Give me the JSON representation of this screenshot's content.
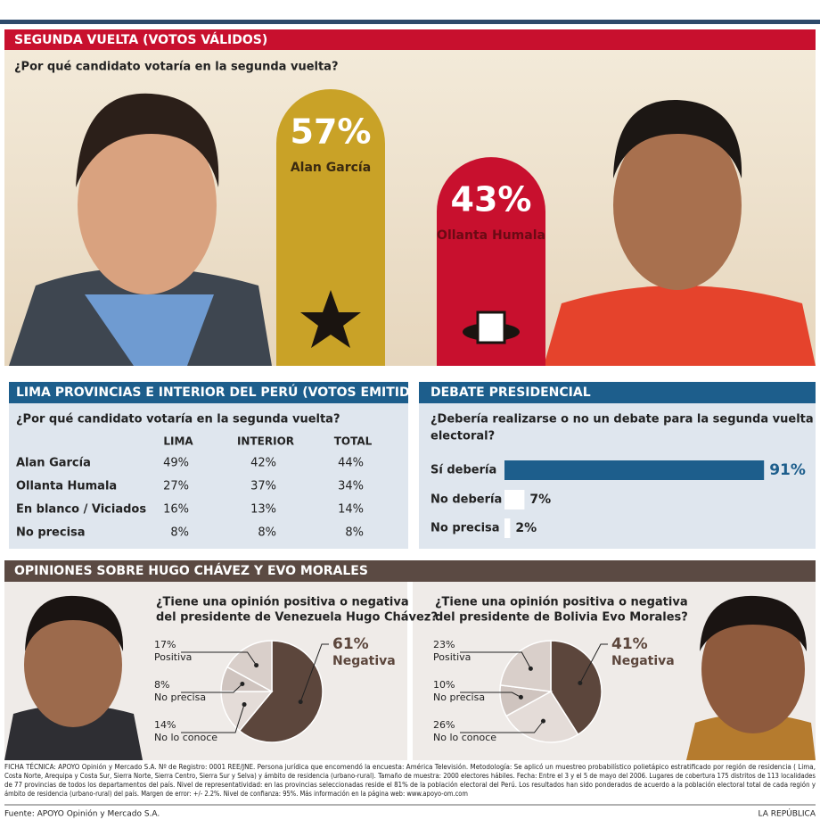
{
  "chart_data": [
    {
      "type": "bar",
      "title": "SEGUNDA VUELTA (VOTOS VÁLIDOS)",
      "subtitle": "¿Por qué candidato votaría en la segunda vuelta?",
      "categories": [
        "Alan García",
        "Ollanta Humala"
      ],
      "values": [
        57,
        43
      ],
      "value_labels": [
        "57%",
        "43%"
      ],
      "colors": [
        "#c9a227",
        "#c8102e"
      ]
    },
    {
      "type": "hbar",
      "title": "DEBATE PRESIDENCIAL",
      "subtitle": [
        "¿Debería realizarse o no un debate para la segunda vuelta",
        "electoral?"
      ],
      "categories": [
        "Sí debería",
        "No debería",
        "No precisa"
      ],
      "values": [
        91,
        7,
        2
      ],
      "value_labels": [
        "91%",
        "7%",
        "2%"
      ],
      "colors": [
        "#1d5e8c",
        "#ffffff",
        "#ffffff"
      ]
    },
    {
      "type": "pie",
      "subtitle": [
        "¿Tiene una opinión positiva o negativa",
        "del presidente de Venezuela Hugo Chávez?"
      ],
      "categories": [
        "Negativa",
        "No lo conoce",
        "No precisa",
        "Positiva"
      ],
      "values": [
        61,
        14,
        8,
        17
      ],
      "value_labels": [
        "61%",
        "14%",
        "8%",
        "17%"
      ],
      "colors": [
        "#5c463c",
        "#e4dcd8",
        "#cfc4bf",
        "#d9cfca"
      ]
    },
    {
      "type": "pie",
      "subtitle": [
        "¿Tiene una opinión positiva o negativa",
        "del presidente de Bolivia Evo Morales?"
      ],
      "categories": [
        "Negativa",
        "No lo conoce",
        "No precisa",
        "Positiva"
      ],
      "values": [
        41,
        26,
        10,
        23
      ],
      "value_labels": [
        "41%",
        "26%",
        "10%",
        "23%"
      ],
      "colors": [
        "#5c463c",
        "#e4dcd8",
        "#cfc4bf",
        "#d9cfca"
      ]
    }
  ],
  "table": {
    "title": "LIMA PROVINCIAS E INTERIOR DEL PERÚ (VOTOS EMITIDOS)",
    "question": "¿Por qué candidato votaría en la segunda vuelta?",
    "columns": [
      "LIMA",
      "INTERIOR",
      "TOTAL"
    ],
    "rows": [
      [
        "Alan García",
        "49%",
        "42%",
        "44%"
      ],
      [
        "Ollanta Humala",
        "27%",
        "37%",
        "34%"
      ],
      [
        "En blanco / Viciados",
        "16%",
        "13%",
        "14%"
      ],
      [
        "No precisa",
        "8%",
        "8%",
        "8%"
      ]
    ]
  },
  "opiniones_title": "OPINIONES SOBRE HUGO CHÁVEZ Y EVO MORALES",
  "ficha": [
    "FICHA TÉCNICA: APOYO Opinión y Mercado S.A. Nº de Registro: 0001 REE/JNE. Persona jurídica que encomendó la encuesta: América Televisión. Metodología: Se aplicó un muestreo probabilístico polietápico estratificado por región de residencia ( Lima,",
    "Costa Norte, Arequipa y Costa Sur, Sierra Norte, Sierra Centro, Sierra Sur y Selva) y ámbito de residencia (urbano-rural). Tamaño de muestra: 2000 electores hábiles. Fecha: Entre el 3 y el 5 de mayo del 2006. Lugares de cobertura 175 distritos de 113 localidades",
    "de 77 provincias de todos los departamentos del país. Nivel de representatividad: en las provincias seleccionadas reside el 81% de la población electoral del Perú. Los resultados han sido ponderados de acuerdo a la población electoral total de cada región y",
    "ámbito de residencia (urbano-rural) del país. Margen de error: +/- 2.2%. Nivel de confianza: 95%. Más información en la página web: www.apoyo-om.com"
  ],
  "source": "Fuente: APOYO Opinión y Mercado S.A.",
  "publisher": "LA REPÚBLICA"
}
